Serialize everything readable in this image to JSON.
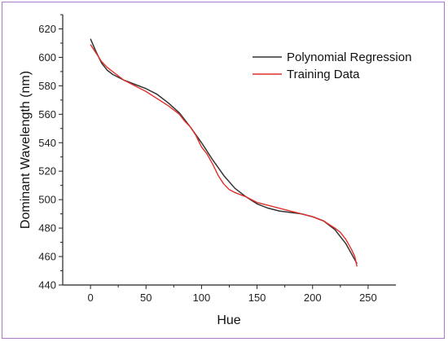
{
  "chart_data": {
    "type": "line",
    "xlabel": "Hue",
    "ylabel": "Dominant Wavelength (nm)",
    "xlim": [
      -25,
      275
    ],
    "ylim": [
      440,
      630
    ],
    "xticks": [
      0,
      50,
      100,
      150,
      200,
      250
    ],
    "yticks": [
      440,
      460,
      480,
      500,
      520,
      540,
      560,
      580,
      600,
      620
    ],
    "legend_position": "top-right",
    "series": [
      {
        "name": "Polynomial Regression",
        "color": "#333333",
        "x": [
          0,
          5,
          10,
          15,
          20,
          25,
          30,
          40,
          50,
          60,
          70,
          80,
          90,
          100,
          110,
          120,
          130,
          140,
          150,
          160,
          170,
          180,
          190,
          200,
          210,
          220,
          225,
          230,
          235,
          240
        ],
        "y": [
          613,
          604,
          596,
          591,
          588,
          586,
          584,
          581,
          578,
          574,
          568,
          561,
          551,
          540,
          528,
          517,
          508,
          502,
          497,
          494,
          492,
          491,
          490,
          488,
          485,
          479,
          474,
          469,
          462,
          455
        ]
      },
      {
        "name": "Training Data",
        "color": "#e0302a",
        "x": [
          0,
          5,
          10,
          15,
          20,
          25,
          30,
          40,
          50,
          60,
          70,
          80,
          85,
          90,
          95,
          100,
          105,
          110,
          115,
          120,
          125,
          130,
          140,
          150,
          160,
          170,
          180,
          190,
          200,
          210,
          220,
          225,
          230,
          235,
          238,
          240
        ],
        "y": [
          609,
          603,
          597,
          593,
          590,
          587,
          584,
          580,
          576,
          571,
          566,
          560,
          555,
          551,
          545,
          537,
          532,
          525,
          517,
          511,
          507,
          505,
          502,
          498,
          496,
          494,
          492,
          490,
          488,
          485,
          480,
          477,
          472,
          465,
          460,
          453
        ]
      }
    ]
  }
}
